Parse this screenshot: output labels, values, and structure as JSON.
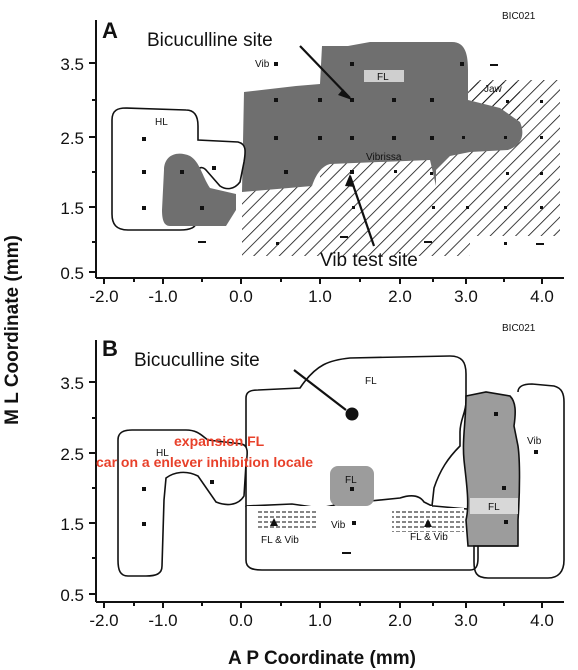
{
  "panel_a": {
    "letter": "A",
    "code": "BIC021",
    "callout_top": "Bicuculline site",
    "callout_bottom": "Vib test site",
    "regions": {
      "hl": "HL",
      "vib": "Vib",
      "fl": "FL",
      "jaw": "Jaw",
      "vibrissa": "Vibrissa"
    },
    "y_ticks": [
      "3.5",
      "2.5",
      "1.5",
      "0.5"
    ],
    "x_ticks": [
      "-2.0",
      "-1.0",
      "0.0",
      "1.0",
      "2.0",
      "3.0",
      "4.0"
    ]
  },
  "panel_b": {
    "letter": "B",
    "code": "BIC021",
    "callout_top": "Bicuculline site",
    "annotation_line1": "expansion FL",
    "annotation_line2": "car on a enlever inhibition locale",
    "regions": {
      "hl": "HL",
      "fl_top": "FL",
      "fl_center": "FL",
      "vib_center": "Vib",
      "fl_vib_left": "FL & Vib",
      "fl_vib_right": "FL & Vib",
      "vib_right": "Vib",
      "fl_right": "FL"
    },
    "y_ticks": [
      "3.5",
      "2.5",
      "1.5",
      "0.5"
    ],
    "x_ticks": [
      "-2.0",
      "-1.0",
      "0.0",
      "1.0",
      "2.0",
      "3.0",
      "4.0"
    ]
  },
  "axes": {
    "y_label": "M L Coordinate (mm)",
    "x_label": "A P Coordinate (mm)"
  },
  "colors": {
    "ink": "#111111",
    "gray_fill": "#6f6f6f",
    "light_gray": "#9c9c9c",
    "annotation_red": "#e8402a"
  }
}
